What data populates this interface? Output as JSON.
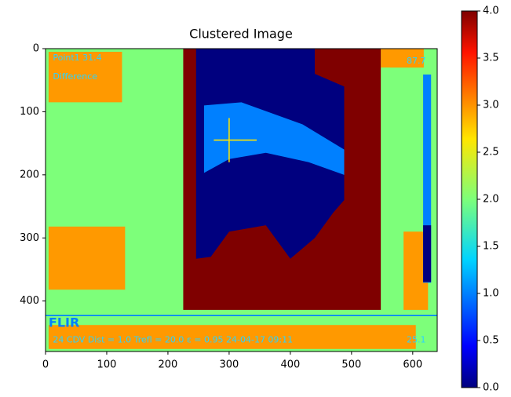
{
  "chart_data": {
    "type": "image",
    "title": "Clustered Image",
    "xlim": [
      0,
      640
    ],
    "ylim": [
      480,
      0
    ],
    "xticks": [
      0,
      100,
      200,
      300,
      400,
      500,
      600
    ],
    "yticks": [
      0,
      100,
      200,
      300,
      400
    ],
    "colorbar": {
      "colormap": "jet",
      "lim": [
        0,
        4
      ],
      "ticks": [
        {
          "value": 0,
          "label": "0.0"
        },
        {
          "value": 0.5,
          "label": "0.5"
        },
        {
          "value": 1,
          "label": "1.0"
        },
        {
          "value": 1.5,
          "label": "1.5"
        },
        {
          "value": 2,
          "label": "2.0"
        },
        {
          "value": 2.5,
          "label": "2.5"
        },
        {
          "value": 3,
          "label": "3.0"
        },
        {
          "value": 3.5,
          "label": "3.5"
        },
        {
          "value": 4,
          "label": "4.0"
        }
      ]
    },
    "image_texts": [
      "Point1 31.4",
      "Difference",
      "87.7",
      "FLIR",
      "24 CDV  Dist = 1.0  Trefl = 20.0  ε = 0.95  24-04-17 09:11",
      "25.1"
    ]
  }
}
